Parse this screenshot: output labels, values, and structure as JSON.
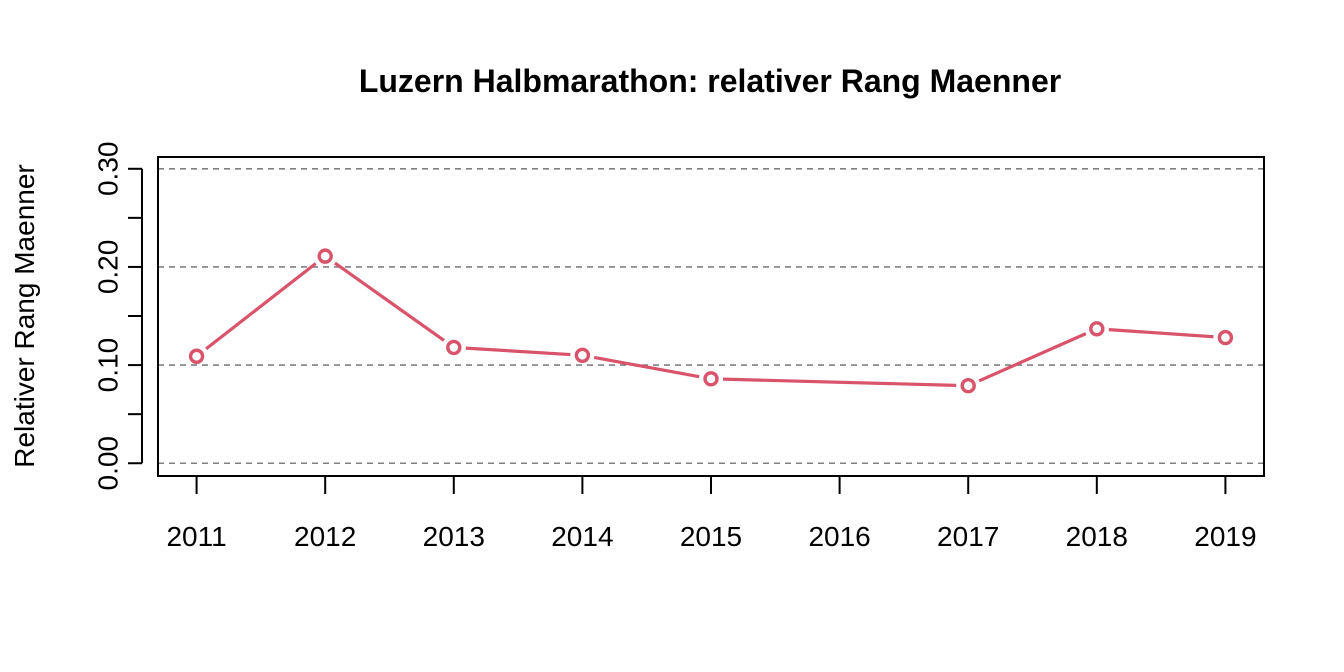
{
  "chart_data": {
    "type": "line",
    "title": "Luzern Halbmarathon: relativer Rang Maenner",
    "xlabel": "",
    "ylabel": "Relativer Rang Maenner",
    "x": [
      2011,
      2012,
      2013,
      2014,
      2015,
      2016,
      2017,
      2018,
      2019
    ],
    "x_tick_labels": [
      "2011",
      "2012",
      "2013",
      "2014",
      "2015",
      "2016",
      "2017",
      "2018",
      "2019"
    ],
    "y_tick_labels": [
      "0.00",
      "0.10",
      "0.20",
      "0.30"
    ],
    "y_ticks_major": [
      0.0,
      0.1,
      0.2,
      0.3
    ],
    "y_ticks_minor": [
      0.05,
      0.15,
      0.25
    ],
    "ylim": [
      -0.013,
      0.312
    ],
    "xlim": [
      2010.7,
      2019.3
    ],
    "grid": "horizontal dashed at 0.00, 0.10, 0.20, 0.30",
    "series": [
      {
        "values": [
          0.109,
          0.211,
          0.118,
          0.11,
          0.086,
          null,
          0.079,
          0.137,
          0.128
        ],
        "color": "#d9536b",
        "marker": "open-circle"
      }
    ],
    "grid_color": "#808080"
  }
}
